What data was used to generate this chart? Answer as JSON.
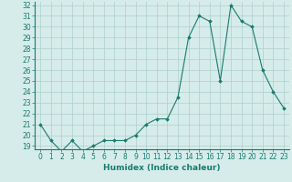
{
  "x": [
    0,
    1,
    2,
    3,
    4,
    5,
    6,
    7,
    8,
    9,
    10,
    11,
    12,
    13,
    14,
    15,
    16,
    17,
    18,
    19,
    20,
    21,
    22,
    23
  ],
  "y": [
    21.0,
    19.5,
    18.5,
    19.5,
    18.5,
    19.0,
    19.5,
    19.5,
    19.5,
    20.0,
    21.0,
    21.5,
    21.5,
    23.5,
    29.0,
    31.0,
    30.5,
    25.0,
    32.0,
    30.5,
    30.0,
    26.0,
    24.0,
    22.5
  ],
  "xlabel": "Humidex (Indice chaleur)",
  "ylabel": "",
  "ylim": [
    19,
    32
  ],
  "xlim": [
    -0.5,
    23.5
  ],
  "yticks": [
    19,
    20,
    21,
    22,
    23,
    24,
    25,
    26,
    27,
    28,
    29,
    30,
    31,
    32
  ],
  "xticks": [
    0,
    1,
    2,
    3,
    4,
    5,
    6,
    7,
    8,
    9,
    10,
    11,
    12,
    13,
    14,
    15,
    16,
    17,
    18,
    19,
    20,
    21,
    22,
    23
  ],
  "line_color": "#1a7a6e",
  "marker": "D",
  "marker_size": 1.8,
  "bg_color": "#d5ecea",
  "grid_color": "#aecfcc",
  "label_fontsize": 6.5,
  "tick_fontsize": 5.5
}
